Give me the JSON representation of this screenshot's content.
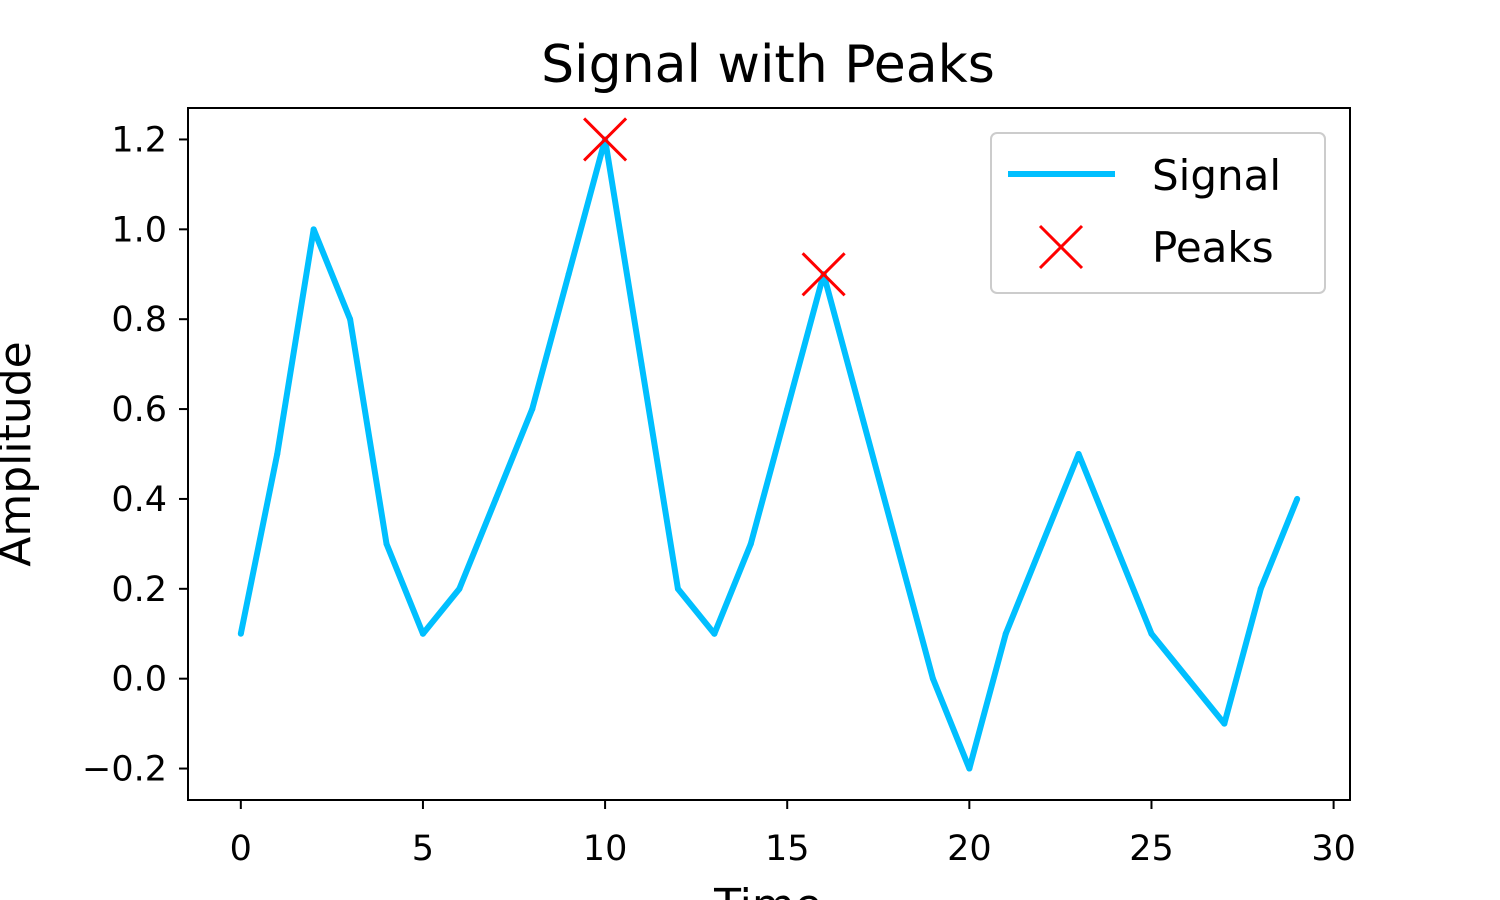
{
  "chart_data": {
    "type": "line",
    "title": "Signal with Peaks",
    "xlabel": "Time",
    "ylabel": "Amplitude",
    "xlim": [
      -1.45,
      30.45
    ],
    "ylim": [
      -0.27,
      1.27
    ],
    "x_ticks": [
      0,
      5,
      10,
      15,
      20,
      25,
      30
    ],
    "y_ticks": [
      -0.2,
      0.0,
      0.2,
      0.4,
      0.6,
      0.8,
      1.0,
      1.2
    ],
    "y_tick_labels": [
      "−0.2",
      "0.0",
      "0.2",
      "0.4",
      "0.6",
      "0.8",
      "1.0",
      "1.2"
    ],
    "grid": false,
    "legend_position": "upper right",
    "series": [
      {
        "name": "Signal",
        "kind": "line",
        "color": "#00BFFF",
        "x": [
          0,
          1,
          2,
          3,
          4,
          5,
          6,
          7,
          8,
          9,
          10,
          11,
          12,
          13,
          14,
          15,
          16,
          17,
          18,
          19,
          20,
          21,
          22,
          23,
          24,
          25,
          26,
          27,
          28,
          29
        ],
        "y": [
          0.1,
          0.5,
          1.0,
          0.8,
          0.3,
          0.1,
          0.2,
          0.4,
          0.6,
          0.9,
          1.2,
          0.7,
          0.2,
          0.1,
          0.3,
          0.6,
          0.9,
          0.6,
          0.3,
          0.0,
          -0.2,
          0.1,
          0.3,
          0.5,
          0.3,
          0.1,
          0.0,
          -0.1,
          0.2,
          0.4
        ]
      },
      {
        "name": "Peaks",
        "kind": "marker",
        "marker": "x",
        "color": "#FF0000",
        "x": [
          10,
          16
        ],
        "y": [
          1.2,
          0.9
        ]
      }
    ]
  }
}
